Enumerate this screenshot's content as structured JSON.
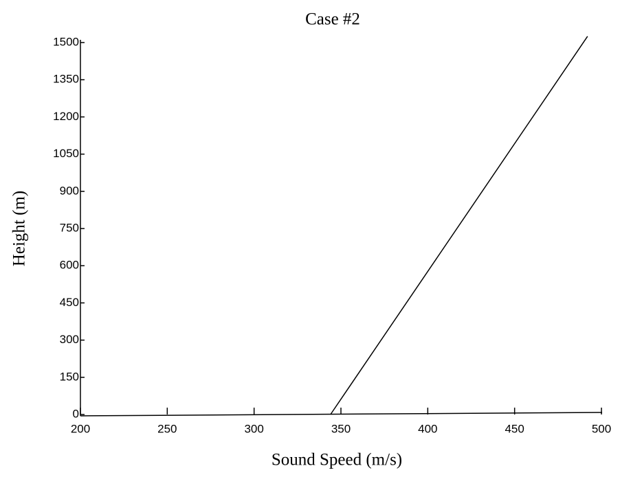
{
  "chart_data": {
    "type": "line",
    "title": "Case #2",
    "x_label": "Sound Speed (m/s)",
    "y_label": "Height (m)",
    "x": [
      344,
      492
    ],
    "series": [
      {
        "color": "#000000",
        "values": [
          0,
          1525
        ]
      }
    ],
    "xlim": [
      200,
      500
    ],
    "xticks": [
      200,
      250,
      300,
      350,
      400,
      450,
      500
    ],
    "ylim": [
      0,
      1500
    ],
    "yticks": [
      0,
      150,
      300,
      450,
      600,
      750,
      900,
      1050,
      1200,
      1350,
      1500
    ],
    "grid": false
  }
}
